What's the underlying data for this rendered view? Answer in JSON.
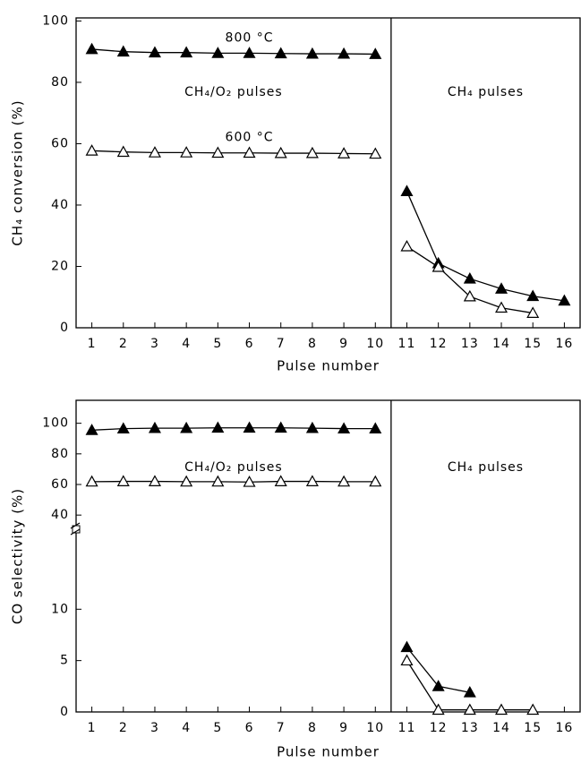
{
  "chart_data": [
    {
      "type": "line",
      "ylabel": "CH₄ conversion (%)",
      "xlabel": "Pulse number",
      "x": [
        1,
        2,
        3,
        4,
        5,
        6,
        7,
        8,
        9,
        10,
        11,
        12,
        13,
        14,
        15,
        16
      ],
      "xlim": [
        0.5,
        16.5
      ],
      "xticks": [
        1,
        2,
        3,
        4,
        5,
        6,
        7,
        8,
        9,
        10,
        11,
        12,
        13,
        14,
        15,
        16
      ],
      "ylim": [
        0,
        101
      ],
      "yticks": [
        0,
        20,
        40,
        60,
        80,
        100
      ],
      "divider_x": 10.5,
      "regions": [
        "CH₄/O₂ pulses",
        "CH₄ pulses"
      ],
      "series": [
        {
          "name": "800 °C",
          "color": "#000000",
          "marker": "filled",
          "values": [
            90.8,
            90.0,
            89.7,
            89.7,
            89.5,
            89.5,
            89.4,
            89.3,
            89.3,
            89.2,
            44.5,
            21.0,
            16.0,
            12.7,
            10.3,
            8.8
          ]
        },
        {
          "name": "600 °C",
          "color": "#000000",
          "marker": "open",
          "values": [
            57.7,
            57.3,
            57.1,
            57.1,
            57.0,
            57.0,
            56.9,
            56.9,
            56.8,
            56.7,
            26.5,
            19.8,
            10.2,
            6.5,
            4.8,
            null
          ]
        }
      ]
    },
    {
      "type": "line",
      "ylabel": "CO selectivity (%)",
      "xlabel": "Pulse number",
      "x": [
        1,
        2,
        3,
        4,
        5,
        6,
        7,
        8,
        9,
        10,
        11,
        12,
        13,
        14,
        15,
        16
      ],
      "xlim": [
        0.5,
        16.5
      ],
      "xticks": [
        1,
        2,
        3,
        4,
        5,
        6,
        7,
        8,
        9,
        10,
        11,
        12,
        13,
        14,
        15,
        16
      ],
      "ylim_segments": [
        [
          0,
          17
        ],
        [
          36,
          115
        ]
      ],
      "yticks": [
        0,
        5,
        10,
        40,
        60,
        80,
        100
      ],
      "divider_x": 10.5,
      "regions": [
        "CH₄/O₂ pulses",
        "CH₄ pulses"
      ],
      "series": [
        {
          "color": "#000000",
          "marker": "filled",
          "values": [
            95.5,
            96.5,
            96.8,
            96.8,
            97.0,
            97.0,
            97.0,
            96.8,
            96.5,
            96.5,
            6.3,
            2.5,
            1.9,
            null,
            null,
            null
          ]
        },
        {
          "color": "#000000",
          "marker": "open",
          "values": [
            61.8,
            62.0,
            62.0,
            61.8,
            61.8,
            61.6,
            62.0,
            62.0,
            61.8,
            61.8,
            5.0,
            0.2,
            0.2,
            0.2,
            0.2,
            null
          ]
        }
      ]
    }
  ]
}
